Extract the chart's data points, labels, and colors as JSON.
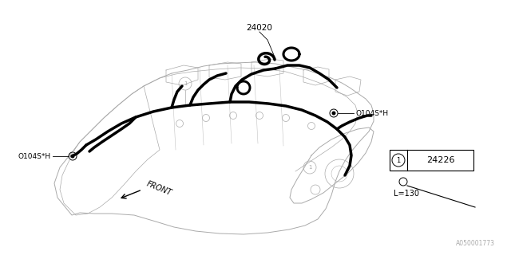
{
  "background_color": "#ffffff",
  "line_color": "#000000",
  "gray_color": "#aaaaaa",
  "part_number_24020": "24020",
  "part_number_24226": "24226",
  "label_0104sh_left": "O104S*H",
  "label_0104sh_right": "O104S*H",
  "label_front": "FRONT",
  "label_length": "L=130",
  "watermark": "A050001773",
  "figsize": [
    6.4,
    3.2
  ],
  "dpi": 100
}
